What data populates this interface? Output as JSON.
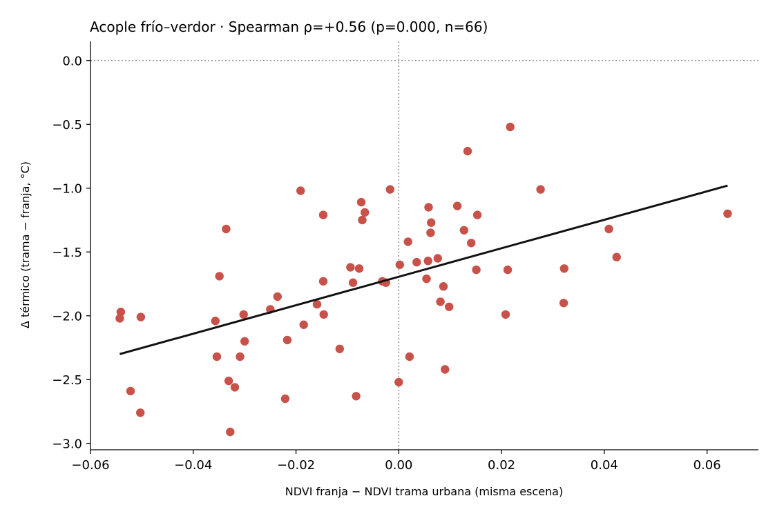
{
  "chart_data": {
    "type": "scatter",
    "title": "Acople frío–verdor · Spearman ρ=+0.56 (p=0.000, n=66)",
    "xlabel": "NDVI franja − NDVI trama urbana (misma escena)",
    "ylabel": "Δ térmico (trama − franja, °C)",
    "xlim": [
      -0.06,
      0.07
    ],
    "ylim": [
      -3.05,
      0.15
    ],
    "xticks": [
      -0.06,
      -0.04,
      -0.02,
      0.0,
      0.02,
      0.04,
      0.06
    ],
    "xtick_labels": [
      "−0.06",
      "−0.04",
      "−0.02",
      "0.00",
      "0.02",
      "0.04",
      "0.06"
    ],
    "yticks": [
      0.0,
      -0.5,
      -1.0,
      -1.5,
      -2.0,
      -2.5,
      -3.0
    ],
    "ytick_labels": [
      "0.0",
      "−0.5",
      "−1.0",
      "−1.5",
      "−2.0",
      "−2.5",
      "−3.0"
    ],
    "grid": false,
    "reference_lines": {
      "x": 0.0,
      "y": 0.0,
      "style": "dotted",
      "color": "#999999"
    },
    "point_color": "#c8524a",
    "line_color": "#111111",
    "points": [
      {
        "x": -0.0543,
        "y": -2.02
      },
      {
        "x": -0.0541,
        "y": -1.97
      },
      {
        "x": -0.0522,
        "y": -2.59
      },
      {
        "x": -0.0503,
        "y": -2.76
      },
      {
        "x": -0.0502,
        "y": -2.01
      },
      {
        "x": -0.0357,
        "y": -2.04
      },
      {
        "x": -0.0354,
        "y": -2.32
      },
      {
        "x": -0.0349,
        "y": -1.69
      },
      {
        "x": -0.0336,
        "y": -1.32
      },
      {
        "x": -0.0331,
        "y": -2.51
      },
      {
        "x": -0.0328,
        "y": -2.91
      },
      {
        "x": -0.0319,
        "y": -2.56
      },
      {
        "x": -0.0309,
        "y": -2.32
      },
      {
        "x": -0.0302,
        "y": -1.99
      },
      {
        "x": -0.03,
        "y": -2.2
      },
      {
        "x": -0.025,
        "y": -1.95
      },
      {
        "x": -0.0236,
        "y": -1.85
      },
      {
        "x": -0.0221,
        "y": -2.65
      },
      {
        "x": -0.0217,
        "y": -2.19
      },
      {
        "x": -0.0191,
        "y": -1.02
      },
      {
        "x": -0.0185,
        "y": -2.07
      },
      {
        "x": -0.0159,
        "y": -1.91
      },
      {
        "x": -0.0147,
        "y": -1.21
      },
      {
        "x": -0.0147,
        "y": -1.73
      },
      {
        "x": -0.0146,
        "y": -1.99
      },
      {
        "x": -0.0115,
        "y": -2.26
      },
      {
        "x": -0.0094,
        "y": -1.62
      },
      {
        "x": -0.0089,
        "y": -1.74
      },
      {
        "x": -0.0083,
        "y": -2.63
      },
      {
        "x": -0.0077,
        "y": -1.63
      },
      {
        "x": -0.0073,
        "y": -1.11
      },
      {
        "x": -0.0071,
        "y": -1.25
      },
      {
        "x": -0.0066,
        "y": -1.19
      },
      {
        "x": -0.0032,
        "y": -1.73
      },
      {
        "x": -0.0025,
        "y": -1.74
      },
      {
        "x": -0.0017,
        "y": -1.01
      },
      {
        "x": 0.0,
        "y": -2.52
      },
      {
        "x": 0.0002,
        "y": -1.6
      },
      {
        "x": 0.0018,
        "y": -1.42
      },
      {
        "x": 0.0021,
        "y": -2.32
      },
      {
        "x": 0.0035,
        "y": -1.58
      },
      {
        "x": 0.0054,
        "y": -1.71
      },
      {
        "x": 0.0057,
        "y": -1.57
      },
      {
        "x": 0.0058,
        "y": -1.15
      },
      {
        "x": 0.0062,
        "y": -1.35
      },
      {
        "x": 0.0063,
        "y": -1.27
      },
      {
        "x": 0.0076,
        "y": -1.55
      },
      {
        "x": 0.0081,
        "y": -1.89
      },
      {
        "x": 0.0087,
        "y": -1.77
      },
      {
        "x": 0.009,
        "y": -2.42
      },
      {
        "x": 0.0098,
        "y": -1.93
      },
      {
        "x": 0.0114,
        "y": -1.14
      },
      {
        "x": 0.0127,
        "y": -1.33
      },
      {
        "x": 0.0134,
        "y": -0.71
      },
      {
        "x": 0.0141,
        "y": -1.43
      },
      {
        "x": 0.0151,
        "y": -1.64
      },
      {
        "x": 0.0153,
        "y": -1.21
      },
      {
        "x": 0.0208,
        "y": -1.99
      },
      {
        "x": 0.0212,
        "y": -1.64
      },
      {
        "x": 0.0217,
        "y": -0.52
      },
      {
        "x": 0.0276,
        "y": -1.01
      },
      {
        "x": 0.0321,
        "y": -1.9
      },
      {
        "x": 0.0322,
        "y": -1.63
      },
      {
        "x": 0.0409,
        "y": -1.32
      },
      {
        "x": 0.0424,
        "y": -1.54
      },
      {
        "x": 0.064,
        "y": -1.2
      }
    ],
    "fit_line": {
      "x": [
        -0.0543,
        0.064
      ],
      "y": [
        -2.3,
        -0.98
      ]
    }
  }
}
